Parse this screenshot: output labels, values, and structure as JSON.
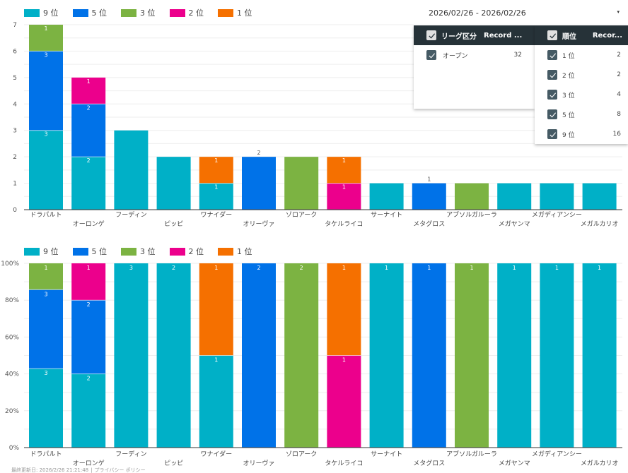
{
  "date_range": {
    "value": "2026/02/26 - 2026/02/26",
    "caret_icon": "▾"
  },
  "league_filter": {
    "header_label": "リーグ区分",
    "header_metric": "Record ...",
    "rows": [
      {
        "label": "オープン",
        "value": "32",
        "checked": true
      }
    ]
  },
  "rank_filter": {
    "header_label": "順位",
    "header_metric": "Recor...",
    "rows": [
      {
        "label": "1 位",
        "value": "2",
        "checked": true
      },
      {
        "label": "2 位",
        "value": "2",
        "checked": true
      },
      {
        "label": "3 位",
        "value": "4",
        "checked": true
      },
      {
        "label": "5 位",
        "value": "8",
        "checked": true
      },
      {
        "label": "9 位",
        "value": "16",
        "checked": true
      }
    ]
  },
  "legend": [
    {
      "label": "9 位",
      "color": "#00b0c7"
    },
    {
      "label": "5 位",
      "color": "#0072e8"
    },
    {
      "label": "3 位",
      "color": "#7cb342"
    },
    {
      "label": "2 位",
      "color": "#ec008c"
    },
    {
      "label": "1 位",
      "color": "#f57000"
    }
  ],
  "footer": {
    "updated": "最終更新日: 2026/2/26 21:21:48",
    "separator": "|",
    "privacy": "プライバシー ポリシー"
  },
  "chart_data": [
    {
      "type": "bar",
      "stacked": true,
      "title": "",
      "xlabel": "",
      "ylabel": "",
      "ylim": [
        0,
        7
      ],
      "yticks": [
        "0",
        "1",
        "2",
        "3",
        "4",
        "5",
        "6",
        "7"
      ],
      "grid": true,
      "legend_position": "top-left",
      "categories": [
        "ドラパルト",
        "オーロンゲ",
        "フーディン",
        "ピッピ",
        "ワナイダー",
        "オリーヴァ",
        "ゾロアーク",
        "タケルライコ",
        "サーナイト",
        "メタグロス",
        "アブソルガルーラ",
        "メガヤンマ",
        "メガディアンシー",
        "メガルカリオ"
      ],
      "series": [
        {
          "name": "9 位",
          "values": [
            3,
            2,
            3,
            2,
            1,
            0,
            0,
            0,
            1,
            0,
            0,
            1,
            1,
            1
          ]
        },
        {
          "name": "5 位",
          "values": [
            3,
            2,
            0,
            0,
            0,
            2,
            0,
            0,
            0,
            1,
            0,
            0,
            0,
            0
          ]
        },
        {
          "name": "3 位",
          "values": [
            1,
            0,
            0,
            0,
            0,
            0,
            2,
            0,
            0,
            0,
            1,
            0,
            0,
            0
          ]
        },
        {
          "name": "2 位",
          "values": [
            0,
            1,
            0,
            0,
            0,
            0,
            0,
            1,
            0,
            0,
            0,
            0,
            0,
            0
          ]
        },
        {
          "name": "1 位",
          "values": [
            0,
            0,
            0,
            0,
            1,
            0,
            0,
            1,
            0,
            0,
            0,
            0,
            0,
            0
          ]
        }
      ]
    },
    {
      "type": "bar",
      "stacked": true,
      "normalized": "percent",
      "title": "",
      "xlabel": "",
      "ylabel": "",
      "ylim": [
        0,
        100
      ],
      "yticks": [
        "0%",
        "20%",
        "40%",
        "60%",
        "80%",
        "100%"
      ],
      "grid": true,
      "legend_position": "top-left",
      "categories": [
        "ドラパルト",
        "オーロンゲ",
        "フーディン",
        "ピッピ",
        "ワナイダー",
        "オリーヴァ",
        "ゾロアーク",
        "タケルライコ",
        "サーナイト",
        "メタグロス",
        "アブソルガルーラ",
        "メガヤンマ",
        "メガディアンシー",
        "メガルカリオ"
      ],
      "series": [
        {
          "name": "9 位",
          "values": [
            3,
            2,
            3,
            2,
            1,
            0,
            0,
            0,
            1,
            0,
            0,
            1,
            1,
            1
          ]
        },
        {
          "name": "5 位",
          "values": [
            3,
            2,
            0,
            0,
            0,
            2,
            0,
            0,
            0,
            1,
            0,
            0,
            0,
            0
          ]
        },
        {
          "name": "3 位",
          "values": [
            1,
            0,
            0,
            0,
            0,
            0,
            2,
            0,
            0,
            0,
            1,
            0,
            0,
            0
          ]
        },
        {
          "name": "2 位",
          "values": [
            0,
            1,
            0,
            0,
            0,
            0,
            0,
            1,
            0,
            0,
            0,
            0,
            0,
            0
          ]
        },
        {
          "name": "1 位",
          "values": [
            0,
            0,
            0,
            0,
            1,
            0,
            0,
            1,
            0,
            0,
            0,
            0,
            0,
            0
          ]
        }
      ]
    }
  ]
}
